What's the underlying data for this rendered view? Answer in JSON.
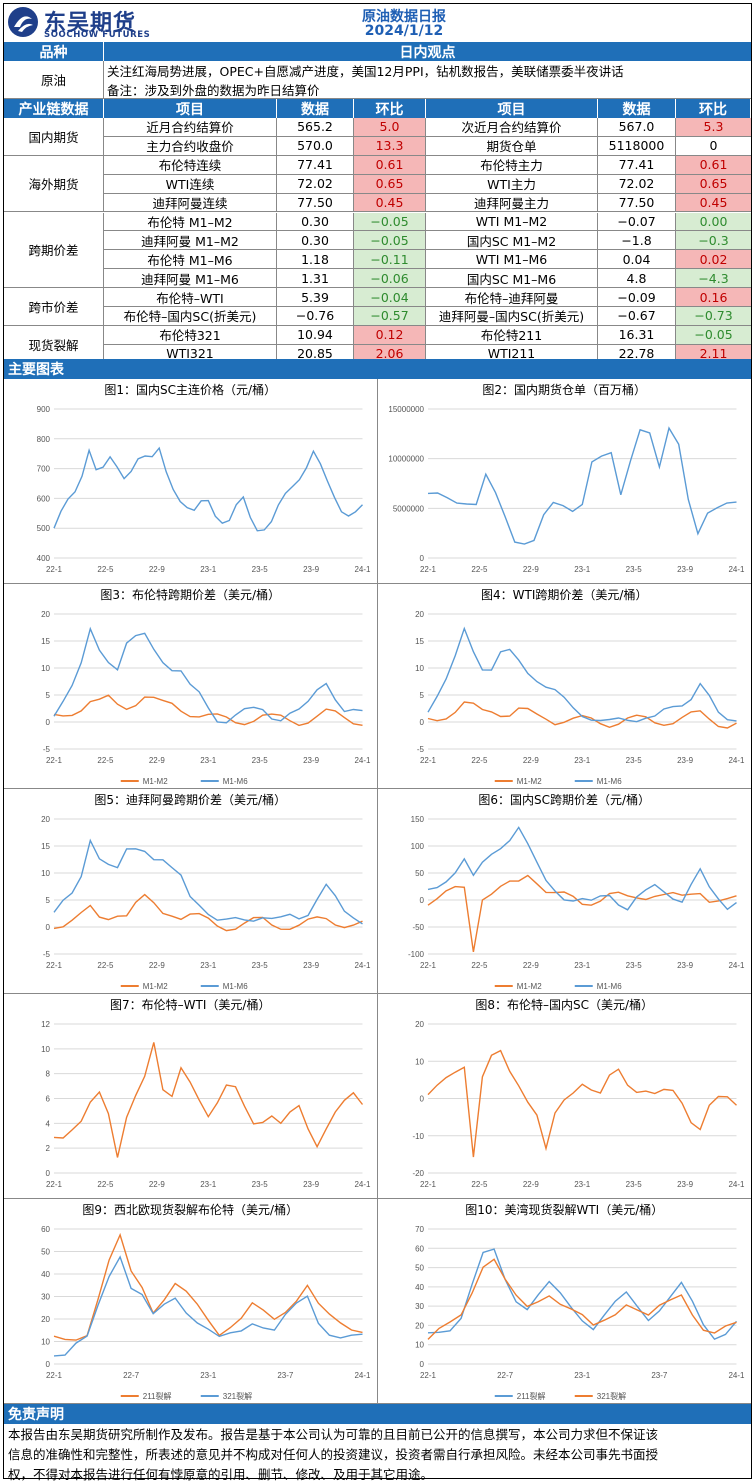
{
  "header": {
    "logo_cn": "东吴期货",
    "logo_en": "SOOCHOW FUTURES",
    "report_title": "原油数据日报",
    "report_date": "2024/1/12"
  },
  "view_section": {
    "col_variety": "品种",
    "col_view": "日内观点",
    "variety": "原油",
    "view_line1": "关注红海局势进展，OPEC+自愿减产进度，美国12月PPI，钻机数报告，美联储票委半夜讲话",
    "view_line2": "备注：涉及到外盘的数据为昨日结算价"
  },
  "table": {
    "headers": [
      "产业链数据",
      "项目",
      "数据",
      "环比",
      "项目",
      "数据",
      "环比"
    ],
    "groups": [
      {
        "name": "国内期货",
        "rows": [
          {
            "item1": "近月合约结算价",
            "data1": "565.2",
            "chg1": "5.0",
            "c1": "red",
            "item2": "次近月合约结算价",
            "data2": "567.0",
            "chg2": "5.3",
            "c2": "red"
          },
          {
            "item1": "主力合约收盘价",
            "data1": "570.0",
            "chg1": "13.3",
            "c1": "red",
            "item2": "期货仓单",
            "data2": "5118000",
            "chg2": "0",
            "c2": "wt"
          }
        ]
      },
      {
        "name": "海外期货",
        "rows": [
          {
            "item1": "布伦特连续",
            "data1": "77.41",
            "chg1": "0.61",
            "c1": "red",
            "item2": "布伦特主力",
            "data2": "77.41",
            "chg2": "0.61",
            "c2": "red"
          },
          {
            "item1": "WTI连续",
            "data1": "72.02",
            "chg1": "0.65",
            "c1": "red",
            "item2": "WTI主力",
            "data2": "72.02",
            "chg2": "0.65",
            "c2": "red"
          },
          {
            "item1": "迪拜阿曼连续",
            "data1": "77.50",
            "chg1": "0.45",
            "c1": "red",
            "item2": "迪拜阿曼主力",
            "data2": "77.50",
            "chg2": "0.45",
            "c2": "red"
          }
        ]
      },
      {
        "name": "跨期价差",
        "rows": [
          {
            "item1": "布伦特 M1–M2",
            "data1": "0.30",
            "chg1": "−0.05",
            "c1": "grn",
            "item2": "WTI M1–M2",
            "data2": "−0.07",
            "chg2": "0.00",
            "c2": "grn"
          },
          {
            "item1": "迪拜阿曼 M1–M2",
            "data1": "0.30",
            "chg1": "−0.05",
            "c1": "grn",
            "item2": "国内SC M1–M2",
            "data2": "−1.8",
            "chg2": "−0.3",
            "c2": "grn"
          },
          {
            "item1": "布伦特 M1–M6",
            "data1": "1.18",
            "chg1": "−0.11",
            "c1": "grn",
            "item2": "WTI M1–M6",
            "data2": "0.04",
            "chg2": "0.02",
            "c2": "red"
          },
          {
            "item1": "迪拜阿曼 M1–M6",
            "data1": "1.31",
            "chg1": "−0.06",
            "c1": "grn",
            "item2": "国内SC M1–M6",
            "data2": "4.8",
            "chg2": "−4.3",
            "c2": "grn"
          }
        ]
      },
      {
        "name": "跨市价差",
        "rows": [
          {
            "item1": "布伦特–WTI",
            "data1": "5.39",
            "chg1": "−0.04",
            "c1": "grn",
            "item2": "布伦特–迪拜阿曼",
            "data2": "−0.09",
            "chg2": "0.16",
            "c2": "red"
          },
          {
            "item1": "布伦特–国内SC(折美元)",
            "data1": "−0.76",
            "chg1": "−0.57",
            "c1": "grn",
            "item2": "迪拜阿曼–国内SC(折美元)",
            "data2": "−0.67",
            "chg2": "−0.73",
            "c2": "grn"
          }
        ]
      },
      {
        "name": "现货裂解",
        "rows": [
          {
            "item1": "布伦特321",
            "data1": "10.94",
            "chg1": "0.12",
            "c1": "red",
            "item2": "布伦特211",
            "data2": "16.31",
            "chg2": "−0.05",
            "c2": "grn"
          },
          {
            "item1": "WTI321",
            "data1": "20.85",
            "chg1": "2.06",
            "c1": "red",
            "item2": "WTI211",
            "data2": "22.78",
            "chg2": "2.11",
            "c2": "red"
          }
        ]
      }
    ]
  },
  "charts_section_title": "主要图表",
  "chart_data": [
    {
      "type": "line",
      "title": "图1：国内SC主连价格（元/桶）",
      "xlabel": "",
      "ylabel": "",
      "ylim": [
        400,
        900
      ],
      "yticks": [
        "900",
        "800",
        "700",
        "600",
        "500",
        "400"
      ],
      "xticks": [
        "22-1",
        "22-5",
        "22-9",
        "23-1",
        "23-5",
        "23-9",
        "24-1"
      ],
      "series": [
        {
          "color": "#5b9bd5",
          "values": [
            500,
            540,
            580,
            620,
            690,
            780,
            700,
            690,
            720,
            700,
            680,
            710,
            740,
            730,
            720,
            760,
            700,
            650,
            600,
            560,
            540,
            580,
            600,
            560,
            530,
            520,
            560,
            590,
            540,
            510,
            510,
            520,
            560,
            600,
            640,
            680,
            720,
            760,
            700,
            640,
            600,
            570,
            560,
            560,
            565
          ]
        }
      ]
    },
    {
      "type": "line",
      "title": "图2：国内期货仓单（百万桶）",
      "xlabel": "",
      "ylabel": "",
      "ylim": [
        0,
        15000000
      ],
      "yticks": [
        "15000000",
        "10000000",
        "5000000",
        "0"
      ],
      "xticks": [
        "22-1",
        "22-5",
        "22-9",
        "23-1",
        "23-5",
        "23-9",
        "24-1"
      ],
      "series": [
        {
          "color": "#5b9bd5",
          "values": [
            6000000,
            6000000,
            6000000,
            6000000,
            6000000,
            5500000,
            8000000,
            6000000,
            4000000,
            2000000,
            2000000,
            2000000,
            4000000,
            5000000,
            5000000,
            5000000,
            6000000,
            10000000,
            10000000,
            10000000,
            6000000,
            10000000,
            13500000,
            13000000,
            9000000,
            12500000,
            11000000,
            6000000,
            3000000,
            5000000,
            5000000,
            5000000,
            5118000
          ]
        }
      ]
    },
    {
      "type": "line",
      "title": "图3：布伦特跨期价差（美元/桶）",
      "xlabel": "",
      "ylabel": "",
      "ylim": [
        -5,
        20
      ],
      "yticks": [
        "20",
        "15",
        "10",
        "5",
        "0",
        "-5"
      ],
      "xticks": [
        "22-1",
        "22-5",
        "22-9",
        "23-1",
        "23-5",
        "23-9",
        "24-1"
      ],
      "series": [
        {
          "name": "M1-M2",
          "color": "#ed7d31",
          "values": [
            0.5,
            1,
            2,
            3,
            4,
            3.5,
            4,
            3,
            3,
            4,
            5,
            4,
            3,
            3,
            2.5,
            2,
            1.5,
            1,
            0.5,
            0.3,
            0.2,
            0.5,
            0.8,
            1,
            0.5,
            0.5,
            0.4,
            0.3,
            0.6,
            1,
            1.5,
            1.2,
            0.8,
            0.5,
            0.3
          ]
        },
        {
          "name": "M1-M6",
          "color": "#5b9bd5",
          "values": [
            2,
            4,
            6,
            10,
            17,
            14,
            12,
            10,
            14,
            15,
            16,
            14,
            12,
            10,
            9,
            6,
            5,
            3,
            1,
            0.5,
            1,
            1.5,
            2,
            2.5,
            1.5,
            1,
            1.5,
            1.5,
            3,
            6,
            8,
            5,
            2,
            1.5,
            1.2
          ]
        }
      ]
    },
    {
      "type": "line",
      "title": "图4：WTI跨期价差（美元/桶）",
      "xlabel": "",
      "ylabel": "",
      "ylim": [
        -5,
        20
      ],
      "yticks": [
        "20",
        "15",
        "10",
        "5",
        "0",
        "-5"
      ],
      "xticks": [
        "22-1",
        "22-5",
        "22-9",
        "23-1",
        "23-5",
        "23-9",
        "24-1"
      ],
      "series": [
        {
          "name": "M1-M2",
          "color": "#ed7d31",
          "values": [
            0.5,
            1,
            1.5,
            2,
            3,
            2.5,
            2,
            2.5,
            2,
            1.5,
            2,
            1.5,
            1,
            1,
            0.5,
            0.5,
            0.3,
            0.2,
            0.1,
            0,
            0,
            0.3,
            0.5,
            0.3,
            0.2,
            0,
            0.3,
            0.5,
            0.8,
            1,
            1.2,
            0.5,
            0,
            -0.2,
            -0.07
          ]
        },
        {
          "name": "M1-M6",
          "color": "#5b9bd5",
          "values": [
            2,
            4,
            7,
            12,
            18,
            14,
            10,
            9,
            12,
            13,
            12,
            10,
            8,
            6,
            5,
            4,
            3,
            2,
            1,
            0,
            -0.5,
            0,
            0.5,
            1,
            1.5,
            1,
            1.5,
            2,
            3,
            5,
            8,
            5,
            1,
            -0.5,
            0.04
          ]
        }
      ]
    },
    {
      "type": "line",
      "title": "图5：迪拜阿曼跨期价差（美元/桶）",
      "xlabel": "",
      "ylabel": "",
      "ylim": [
        -5,
        20
      ],
      "yticks": [
        "20",
        "15",
        "10",
        "5",
        "0",
        "-5"
      ],
      "xticks": [
        "22-1",
        "22-5",
        "22-9",
        "23-1",
        "23-5",
        "23-9",
        "24-1"
      ],
      "series": [
        {
          "name": "M1-M2",
          "color": "#ed7d31",
          "values": [
            0.5,
            1,
            1.5,
            2,
            3,
            1.5,
            2,
            3,
            2.5,
            4,
            5,
            4,
            3,
            3,
            2,
            2,
            1.5,
            1,
            0.5,
            0.3,
            0.3,
            0.5,
            0.8,
            1,
            0.5,
            0.5,
            0.4,
            0.3,
            0.6,
            1,
            1.5,
            1.2,
            0.8,
            0.5,
            0.3
          ]
        },
        {
          "name": "M1-M6",
          "color": "#5b9bd5",
          "values": [
            2,
            4,
            6,
            10,
            17,
            13,
            11,
            10,
            14,
            15,
            15,
            13,
            12,
            10,
            9,
            6,
            5,
            3,
            1,
            0.5,
            1,
            1.5,
            2,
            2.5,
            1.5,
            1,
            1.5,
            1.5,
            3,
            6,
            8,
            5,
            2,
            1.5,
            1.31
          ]
        }
      ]
    },
    {
      "type": "line",
      "title": "图6：国内SC跨期价差（元/桶）",
      "xlabel": "",
      "ylabel": "",
      "ylim": [
        -100,
        150
      ],
      "yticks": [
        "150",
        "100",
        "50",
        "0",
        "-50",
        "-100"
      ],
      "xticks": [
        "22-1",
        "22-5",
        "22-9",
        "23-1",
        "23-5",
        "23-9",
        "24-1"
      ],
      "series": [
        {
          "name": "M1-M2",
          "color": "#ed7d31",
          "values": [
            0,
            5,
            10,
            15,
            20,
            -90,
            10,
            15,
            20,
            25,
            30,
            50,
            40,
            20,
            10,
            5,
            0,
            -5,
            0,
            5,
            10,
            5,
            0,
            5,
            10,
            15,
            10,
            5,
            0,
            10,
            20,
            5,
            0,
            -5,
            -1.8
          ]
        },
        {
          "name": "M1-M6",
          "color": "#5b9bd5",
          "values": [
            10,
            20,
            40,
            60,
            80,
            40,
            60,
            80,
            100,
            120,
            140,
            100,
            60,
            30,
            20,
            10,
            5,
            0,
            -10,
            0,
            10,
            0,
            -10,
            5,
            10,
            20,
            15,
            10,
            5,
            30,
            50,
            15,
            0,
            -10,
            4.8
          ]
        }
      ]
    },
    {
      "type": "line",
      "title": "图7：布伦特–WTI（美元/桶）",
      "xlabel": "",
      "ylabel": "",
      "ylim": [
        0,
        12
      ],
      "yticks": [
        "12",
        "10",
        "8",
        "6",
        "4",
        "2",
        "0"
      ],
      "xticks": [
        "22-1",
        "22-5",
        "22-9",
        "23-1",
        "23-5",
        "23-9",
        "24-1"
      ],
      "series": [
        {
          "color": "#ed7d31",
          "values": [
            3,
            2.5,
            3,
            4,
            6,
            7,
            5,
            1,
            4,
            6,
            8,
            11,
            7,
            6,
            8,
            7,
            6,
            5,
            6,
            7,
            6.5,
            5,
            4,
            4.5,
            5,
            4,
            4.5,
            5,
            3.5,
            2.5,
            4,
            5,
            5.5,
            6,
            5.39
          ]
        }
      ]
    },
    {
      "type": "line",
      "title": "图8：布伦特–国内SC（美元/桶）",
      "xlabel": "",
      "ylabel": "",
      "ylim": [
        -20,
        20
      ],
      "yticks": [
        "20",
        "10",
        "0",
        "-10",
        "-20"
      ],
      "xticks": [
        "22-1",
        "22-5",
        "22-9",
        "23-1",
        "23-5",
        "23-9",
        "24-1"
      ],
      "series": [
        {
          "color": "#ed7d31",
          "values": [
            0,
            2,
            5,
            8,
            10,
            -15,
            5,
            10,
            12,
            8,
            5,
            0,
            -5,
            -15,
            -5,
            0,
            3,
            5,
            2,
            0,
            5,
            8,
            5,
            3,
            2,
            0,
            1,
            2,
            0,
            -5,
            -8,
            -3,
            -1,
            0,
            -0.76
          ]
        }
      ]
    },
    {
      "type": "line",
      "title": "图9：西北欧现货裂解布伦特（美元/桶）",
      "xlabel": "",
      "ylabel": "",
      "ylim": [
        0,
        60
      ],
      "yticks": [
        "60",
        "50",
        "40",
        "30",
        "20",
        "10",
        "0"
      ],
      "xticks": [
        "22-1",
        "22-7",
        "23-1",
        "23-7",
        "24-1"
      ],
      "series": [
        {
          "name": "211裂解",
          "color": "#ed7d31",
          "values": [
            10,
            10,
            12,
            15,
            30,
            45,
            55,
            40,
            35,
            25,
            30,
            35,
            30,
            25,
            20,
            15,
            18,
            20,
            25,
            22,
            20,
            25,
            30,
            35,
            25,
            20,
            18,
            17,
            16.31
          ]
        },
        {
          "name": "321裂解",
          "color": "#5b9bd5",
          "values": [
            6,
            5,
            8,
            10,
            25,
            40,
            50,
            35,
            30,
            20,
            25,
            30,
            25,
            20,
            15,
            10,
            12,
            15,
            20,
            18,
            15,
            20,
            25,
            30,
            20,
            15,
            12,
            11,
            10.94
          ]
        }
      ]
    },
    {
      "type": "line",
      "title": "图10：美湾现货裂解WTI（美元/桶）",
      "xlabel": "",
      "ylabel": "",
      "ylim": [
        0,
        70
      ],
      "yticks": [
        "70",
        "60",
        "50",
        "40",
        "30",
        "20",
        "10",
        "0"
      ],
      "xticks": [
        "22-1",
        "22-7",
        "23-1",
        "23-7",
        "24-1"
      ],
      "series": [
        {
          "name": "211裂解",
          "color": "#5b9bd5",
          "values": [
            15,
            18,
            20,
            25,
            40,
            55,
            58,
            45,
            35,
            30,
            35,
            40,
            35,
            30,
            25,
            20,
            25,
            30,
            35,
            30,
            25,
            30,
            35,
            40,
            30,
            20,
            15,
            18,
            22.78
          ]
        },
        {
          "name": "321裂解",
          "color": "#ed7d31",
          "values": [
            14,
            17,
            19,
            24,
            38,
            53,
            56,
            43,
            33,
            28,
            33,
            38,
            33,
            28,
            23,
            18,
            23,
            28,
            33,
            28,
            23,
            28,
            33,
            38,
            28,
            18,
            14,
            17,
            20.85
          ]
        }
      ]
    }
  ],
  "disclaimer": {
    "title": "免责声明",
    "text1": "本报告由东吴期货研究所制作及发布。报告是基于本公司认为可靠的且目前已公开的信息撰写，本公司力求但不保证该",
    "text2": "信息的准确性和完整性，所表述的意见并不构成对任何人的投资建议，投资者需自行承担风险。未经本公司事先书面授",
    "text3": "权，不得对本报告进行任何有悖原意的引用、删节、修改、及用于其它用途。"
  },
  "colors": {
    "band": "#1f6fb8",
    "title": "#1f5fb4",
    "logo": "#1f3f8a",
    "up": "#f5b7b7",
    "down": "#d7ecd2"
  }
}
